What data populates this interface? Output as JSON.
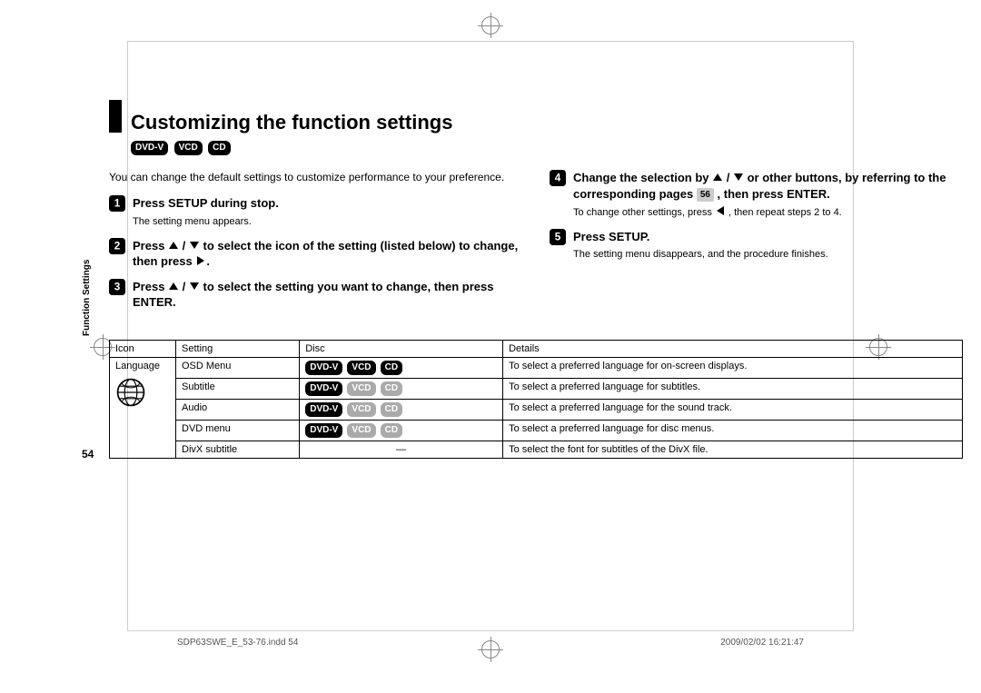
{
  "title": "Customizing the function settings",
  "format_badges": [
    "DVD-V",
    "VCD",
    "CD"
  ],
  "intro": "You can change the default settings to customize performance to your preference.",
  "side_label": "Function Settings",
  "page_number": "54",
  "steps_left": [
    {
      "n": 1,
      "title_parts": [
        {
          "t": "Press SETUP during stop."
        }
      ],
      "sub": "The setting menu appears."
    },
    {
      "n": 2,
      "title_parts": [
        {
          "t": "Press "
        },
        {
          "icon": "up"
        },
        {
          "t": " / "
        },
        {
          "icon": "down"
        },
        {
          "t": " to select the icon of the setting (listed below) to change, then press "
        },
        {
          "icon": "right"
        },
        {
          "t": "."
        }
      ]
    },
    {
      "n": 3,
      "title_parts": [
        {
          "t": "Press "
        },
        {
          "icon": "up"
        },
        {
          "t": " / "
        },
        {
          "icon": "down"
        },
        {
          "t": " to select the setting you want to change, then press ENTER."
        }
      ]
    }
  ],
  "steps_right": [
    {
      "n": 4,
      "title_parts": [
        {
          "t": "Change the selection by "
        },
        {
          "icon": "up"
        },
        {
          "t": " / "
        },
        {
          "icon": "down"
        },
        {
          "t": " or other buttons, by referring to the corresponding pages "
        },
        {
          "pageref": "56"
        },
        {
          "t": " , then press ENTER."
        }
      ],
      "sub_parts": [
        {
          "t": "To change other settings, press "
        },
        {
          "icon": "left"
        },
        {
          "t": " , then repeat steps 2 to 4."
        }
      ]
    },
    {
      "n": 5,
      "title_parts": [
        {
          "t": "Press SETUP."
        }
      ],
      "sub": "The setting menu disappears, and the procedure finishes."
    }
  ],
  "table": {
    "headers": [
      "Icon",
      "Setting",
      "Disc",
      "Details"
    ],
    "icon_label": "Language",
    "rows": [
      {
        "setting": "OSD Menu",
        "badges": [
          {
            "t": "DVD-V",
            "dim": false
          },
          {
            "t": "VCD",
            "dim": false
          },
          {
            "t": "CD",
            "dim": false
          }
        ],
        "details": "To select a preferred language for on-screen displays."
      },
      {
        "setting": "Subtitle",
        "badges": [
          {
            "t": "DVD-V",
            "dim": false
          },
          {
            "t": "VCD",
            "dim": true
          },
          {
            "t": "CD",
            "dim": true
          }
        ],
        "details": "To select a preferred language for subtitles."
      },
      {
        "setting": "Audio",
        "badges": [
          {
            "t": "DVD-V",
            "dim": false
          },
          {
            "t": "VCD",
            "dim": true
          },
          {
            "t": "CD",
            "dim": true
          }
        ],
        "details": "To select a preferred language for the sound track."
      },
      {
        "setting": "DVD menu",
        "badges": [
          {
            "t": "DVD-V",
            "dim": false
          },
          {
            "t": "VCD",
            "dim": true
          },
          {
            "t": "CD",
            "dim": true
          }
        ],
        "details": "To select a preferred language for disc menus."
      },
      {
        "setting": "DivX subtitle",
        "badges": null,
        "dash": "—",
        "details": "To select the font for subtitles of the DivX file."
      }
    ]
  },
  "footer": {
    "left": "SDP63SWE_E_53-76.indd   54",
    "right": "2009/02/02   16:21:47"
  }
}
